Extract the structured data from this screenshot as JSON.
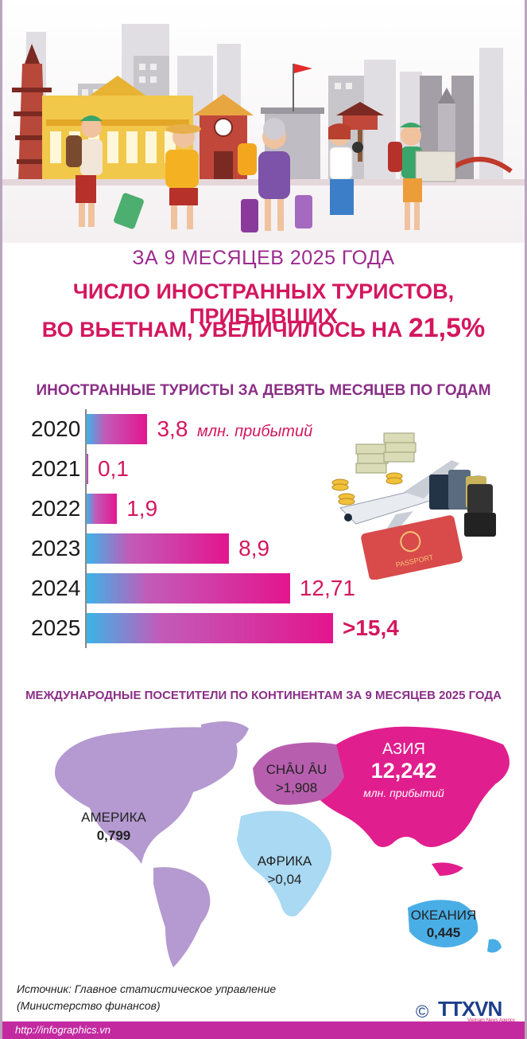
{
  "header": {
    "subtitle": "ЗА 9 МЕСЯЦЕВ 2025 ГОДА",
    "title_line1": "ЧИСЛО ИНОСТРАННЫХ ТУРИСТОВ, ПРИБЫВШИХ",
    "title_line2_text": "ВО ВЬЕТНАМ, УВЕЛИЧИЛОСЬ НА",
    "title_line2_pct": "21,5%"
  },
  "years_chart": {
    "title": "ИНОСТРАННЫЕ ТУРИСТЫ ЗА ДЕВЯТЬ МЕСЯЦЕВ ПО ГОДАМ",
    "unit_label": "млн. прибытий",
    "rows": [
      {
        "year": "2020",
        "value_label": "3,8"
      },
      {
        "year": "2021",
        "value_label": "0,1"
      },
      {
        "year": "2022",
        "value_label": "1,9"
      },
      {
        "year": "2023",
        "value_label": "8,9"
      },
      {
        "year": "2024",
        "value_label": "12,71"
      },
      {
        "year": "2025",
        "value_label": ">15,4"
      }
    ]
  },
  "chart_data": {
    "type": "bar",
    "orientation": "horizontal",
    "categories": [
      "2020",
      "2021",
      "2022",
      "2023",
      "2024",
      "2025"
    ],
    "values": [
      3.8,
      0.1,
      1.9,
      8.9,
      12.71,
      15.4
    ],
    "title": "ИНОСТРАННЫЕ ТУРИСТЫ ЗА ДЕВЯТЬ МЕСЯЦЕВ ПО ГОДАМ",
    "xlim": [
      0,
      15.4
    ],
    "grid": false
  },
  "continents": {
    "title": "МЕЖДУНАРОДНЫЕ ПОСЕТИТЕЛИ ПО КОНТИНЕНТАМ ЗА 9 МЕСЯЦЕВ 2025 ГОДА",
    "america": {
      "name": "АМЕРИКА",
      "value": "0,799"
    },
    "europe": {
      "name": "CHÂU ÂU",
      "value": ">1,908"
    },
    "asia": {
      "name": "АЗИЯ",
      "value": "12,242",
      "unit": "млн. прибытий"
    },
    "africa": {
      "name": "АФРИКА",
      "value": ">0,04"
    },
    "oceania": {
      "name": "ОКЕАНИЯ",
      "value": "0,445"
    },
    "colors": {
      "america": "#b49ad0",
      "europe": "#b75fae",
      "asia": "#e11e8d",
      "africa": "#a9d9f3",
      "oceania": "#4aaee6"
    }
  },
  "source": {
    "line1": "Источник: Главное статистическое управление",
    "line2": "(Министерство финансов)"
  },
  "branding": {
    "copyright": "©",
    "logo": "TTXVN",
    "agency": "Vietnam News Agency",
    "url": "http://infographics.vn"
  },
  "colors": {
    "title_pink": "#d4175f",
    "title_purple": "#8a2f86",
    "bar_start": "#3bb4e8",
    "bar_end": "#e3158e",
    "footer": "#c32aa0"
  }
}
